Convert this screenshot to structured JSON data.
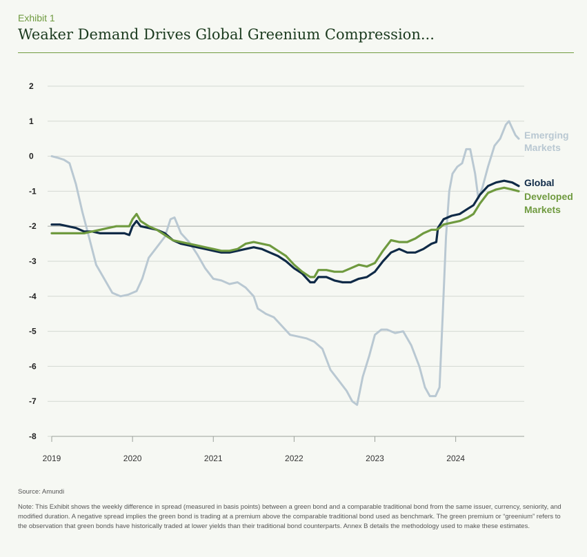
{
  "header": {
    "exhibit": "Exhibit 1",
    "title": "Weaker Demand Drives Global Greenium Compression..."
  },
  "footer": {
    "source": "Source: Amundi",
    "note": "Note: This Exhibit shows the weekly difference in spread (measured in basis points) between a green bond and a comparable traditional bond from the same issuer, currency, seniority, and modified duration. A negative spread implies the green bond is trading at a premium above the comparable traditional bond used as benchmark. The green premium or “greenium” refers to the observation that green bonds have historically traded at lower yields than their traditional bond counterparts. Annex B details the methodology used to make these estimates."
  },
  "chart_data": {
    "type": "line",
    "title": "Weaker Demand Drives Global Greenium Compression...",
    "xlabel": "",
    "ylabel": "",
    "x_ticks": [
      "2019",
      "2020",
      "2021",
      "2022",
      "2023",
      "2024"
    ],
    "xlim": [
      2019.0,
      2024.78
    ],
    "y_ticks": [
      "2",
      "1",
      "0",
      "-1",
      "-2",
      "-3",
      "-4",
      "-5",
      "-6",
      "-7",
      "-8"
    ],
    "ylim": [
      -8,
      2
    ],
    "grid": true,
    "legend": "right-end labels",
    "series": [
      {
        "name": "Emerging Markets",
        "color": "#b9c8d2",
        "points": [
          [
            2019.0,
            0
          ],
          [
            2019.08,
            -0.05
          ],
          [
            2019.15,
            -0.1
          ],
          [
            2019.22,
            -0.2
          ],
          [
            2019.3,
            -0.8
          ],
          [
            2019.38,
            -1.6
          ],
          [
            2019.46,
            -2.3
          ],
          [
            2019.55,
            -3.1
          ],
          [
            2019.65,
            -3.5
          ],
          [
            2019.75,
            -3.9
          ],
          [
            2019.85,
            -4.0
          ],
          [
            2019.95,
            -3.95
          ],
          [
            2020.05,
            -3.85
          ],
          [
            2020.12,
            -3.5
          ],
          [
            2020.2,
            -2.9
          ],
          [
            2020.3,
            -2.6
          ],
          [
            2020.4,
            -2.3
          ],
          [
            2020.47,
            -1.8
          ],
          [
            2020.52,
            -1.75
          ],
          [
            2020.6,
            -2.2
          ],
          [
            2020.7,
            -2.45
          ],
          [
            2020.8,
            -2.8
          ],
          [
            2020.9,
            -3.2
          ],
          [
            2021.0,
            -3.5
          ],
          [
            2021.1,
            -3.55
          ],
          [
            2021.2,
            -3.65
          ],
          [
            2021.3,
            -3.6
          ],
          [
            2021.4,
            -3.75
          ],
          [
            2021.5,
            -4.0
          ],
          [
            2021.55,
            -4.35
          ],
          [
            2021.65,
            -4.5
          ],
          [
            2021.75,
            -4.6
          ],
          [
            2021.85,
            -4.85
          ],
          [
            2021.95,
            -5.1
          ],
          [
            2022.05,
            -5.15
          ],
          [
            2022.15,
            -5.2
          ],
          [
            2022.25,
            -5.3
          ],
          [
            2022.35,
            -5.5
          ],
          [
            2022.45,
            -6.1
          ],
          [
            2022.55,
            -6.4
          ],
          [
            2022.65,
            -6.7
          ],
          [
            2022.72,
            -7.0
          ],
          [
            2022.78,
            -7.1
          ],
          [
            2022.85,
            -6.3
          ],
          [
            2022.93,
            -5.7
          ],
          [
            2023.0,
            -5.1
          ],
          [
            2023.08,
            -4.95
          ],
          [
            2023.15,
            -4.95
          ],
          [
            2023.25,
            -5.05
          ],
          [
            2023.35,
            -5.0
          ],
          [
            2023.45,
            -5.4
          ],
          [
            2023.55,
            -6.0
          ],
          [
            2023.62,
            -6.6
          ],
          [
            2023.68,
            -6.85
          ],
          [
            2023.75,
            -6.85
          ],
          [
            2023.8,
            -6.6
          ],
          [
            2023.84,
            -4.5
          ],
          [
            2023.88,
            -2.3
          ],
          [
            2023.92,
            -1.0
          ],
          [
            2023.96,
            -0.5
          ],
          [
            2024.02,
            -0.3
          ],
          [
            2024.08,
            -0.2
          ],
          [
            2024.13,
            0.2
          ],
          [
            2024.18,
            0.2
          ],
          [
            2024.24,
            -0.5
          ],
          [
            2024.28,
            -1.2
          ],
          [
            2024.33,
            -0.9
          ],
          [
            2024.4,
            -0.3
          ],
          [
            2024.48,
            0.3
          ],
          [
            2024.55,
            0.5
          ],
          [
            2024.62,
            0.9
          ],
          [
            2024.66,
            1.0
          ],
          [
            2024.7,
            0.8
          ],
          [
            2024.74,
            0.6
          ],
          [
            2024.78,
            0.5
          ]
        ]
      },
      {
        "name": "Global",
        "color": "#0f2a47",
        "points": [
          [
            2019.0,
            -1.95
          ],
          [
            2019.1,
            -1.95
          ],
          [
            2019.2,
            -2.0
          ],
          [
            2019.3,
            -2.05
          ],
          [
            2019.4,
            -2.15
          ],
          [
            2019.5,
            -2.15
          ],
          [
            2019.6,
            -2.2
          ],
          [
            2019.7,
            -2.2
          ],
          [
            2019.8,
            -2.2
          ],
          [
            2019.9,
            -2.2
          ],
          [
            2019.96,
            -2.25
          ],
          [
            2020.0,
            -2.0
          ],
          [
            2020.05,
            -1.85
          ],
          [
            2020.1,
            -2.0
          ],
          [
            2020.2,
            -2.05
          ],
          [
            2020.3,
            -2.1
          ],
          [
            2020.4,
            -2.2
          ],
          [
            2020.5,
            -2.4
          ],
          [
            2020.6,
            -2.5
          ],
          [
            2020.7,
            -2.55
          ],
          [
            2020.8,
            -2.6
          ],
          [
            2020.9,
            -2.65
          ],
          [
            2021.0,
            -2.7
          ],
          [
            2021.1,
            -2.75
          ],
          [
            2021.2,
            -2.75
          ],
          [
            2021.3,
            -2.7
          ],
          [
            2021.4,
            -2.65
          ],
          [
            2021.5,
            -2.6
          ],
          [
            2021.6,
            -2.65
          ],
          [
            2021.7,
            -2.75
          ],
          [
            2021.8,
            -2.85
          ],
          [
            2021.9,
            -3.0
          ],
          [
            2022.0,
            -3.2
          ],
          [
            2022.1,
            -3.35
          ],
          [
            2022.2,
            -3.6
          ],
          [
            2022.25,
            -3.6
          ],
          [
            2022.3,
            -3.45
          ],
          [
            2022.4,
            -3.45
          ],
          [
            2022.5,
            -3.55
          ],
          [
            2022.6,
            -3.6
          ],
          [
            2022.7,
            -3.6
          ],
          [
            2022.8,
            -3.5
          ],
          [
            2022.9,
            -3.45
          ],
          [
            2023.0,
            -3.3
          ],
          [
            2023.1,
            -3.0
          ],
          [
            2023.2,
            -2.75
          ],
          [
            2023.3,
            -2.65
          ],
          [
            2023.4,
            -2.75
          ],
          [
            2023.5,
            -2.75
          ],
          [
            2023.6,
            -2.65
          ],
          [
            2023.7,
            -2.5
          ],
          [
            2023.76,
            -2.45
          ],
          [
            2023.78,
            -2.05
          ],
          [
            2023.85,
            -1.8
          ],
          [
            2023.95,
            -1.7
          ],
          [
            2024.05,
            -1.65
          ],
          [
            2024.15,
            -1.5
          ],
          [
            2024.22,
            -1.4
          ],
          [
            2024.3,
            -1.1
          ],
          [
            2024.4,
            -0.85
          ],
          [
            2024.5,
            -0.75
          ],
          [
            2024.6,
            -0.7
          ],
          [
            2024.7,
            -0.75
          ],
          [
            2024.78,
            -0.85
          ]
        ]
      },
      {
        "name": "Developed Markets",
        "color": "#6f9a3f",
        "points": [
          [
            2019.0,
            -2.2
          ],
          [
            2019.1,
            -2.2
          ],
          [
            2019.2,
            -2.2
          ],
          [
            2019.3,
            -2.2
          ],
          [
            2019.4,
            -2.2
          ],
          [
            2019.5,
            -2.15
          ],
          [
            2019.6,
            -2.1
          ],
          [
            2019.7,
            -2.05
          ],
          [
            2019.8,
            -2.0
          ],
          [
            2019.9,
            -2.0
          ],
          [
            2019.96,
            -2.0
          ],
          [
            2020.0,
            -1.8
          ],
          [
            2020.05,
            -1.65
          ],
          [
            2020.1,
            -1.85
          ],
          [
            2020.2,
            -2.0
          ],
          [
            2020.3,
            -2.1
          ],
          [
            2020.4,
            -2.25
          ],
          [
            2020.5,
            -2.4
          ],
          [
            2020.6,
            -2.45
          ],
          [
            2020.7,
            -2.5
          ],
          [
            2020.8,
            -2.55
          ],
          [
            2020.9,
            -2.6
          ],
          [
            2021.0,
            -2.65
          ],
          [
            2021.1,
            -2.7
          ],
          [
            2021.2,
            -2.7
          ],
          [
            2021.3,
            -2.65
          ],
          [
            2021.4,
            -2.5
          ],
          [
            2021.5,
            -2.45
          ],
          [
            2021.6,
            -2.5
          ],
          [
            2021.7,
            -2.55
          ],
          [
            2021.8,
            -2.7
          ],
          [
            2021.9,
            -2.85
          ],
          [
            2022.0,
            -3.1
          ],
          [
            2022.1,
            -3.3
          ],
          [
            2022.2,
            -3.45
          ],
          [
            2022.25,
            -3.45
          ],
          [
            2022.3,
            -3.25
          ],
          [
            2022.4,
            -3.25
          ],
          [
            2022.5,
            -3.3
          ],
          [
            2022.6,
            -3.3
          ],
          [
            2022.7,
            -3.2
          ],
          [
            2022.8,
            -3.1
          ],
          [
            2022.9,
            -3.15
          ],
          [
            2023.0,
            -3.05
          ],
          [
            2023.1,
            -2.7
          ],
          [
            2023.2,
            -2.4
          ],
          [
            2023.3,
            -2.45
          ],
          [
            2023.4,
            -2.45
          ],
          [
            2023.5,
            -2.35
          ],
          [
            2023.6,
            -2.2
          ],
          [
            2023.7,
            -2.1
          ],
          [
            2023.76,
            -2.1
          ],
          [
            2023.8,
            -2.05
          ],
          [
            2023.85,
            -1.95
          ],
          [
            2023.95,
            -1.9
          ],
          [
            2024.05,
            -1.85
          ],
          [
            2024.15,
            -1.75
          ],
          [
            2024.22,
            -1.65
          ],
          [
            2024.3,
            -1.35
          ],
          [
            2024.4,
            -1.05
          ],
          [
            2024.5,
            -0.95
          ],
          [
            2024.6,
            -0.9
          ],
          [
            2024.7,
            -0.95
          ],
          [
            2024.78,
            -1.0
          ]
        ]
      }
    ]
  }
}
